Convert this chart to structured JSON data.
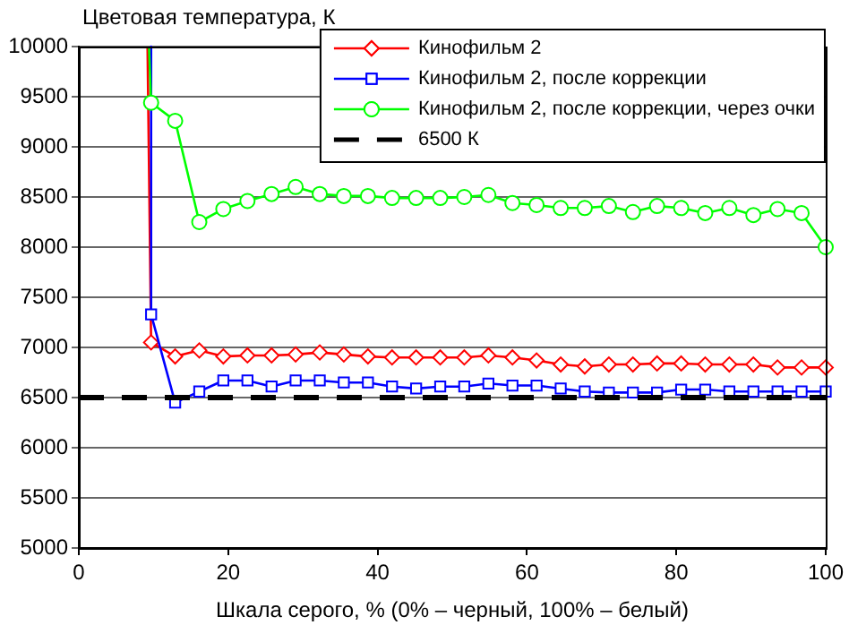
{
  "chart_data": {
    "type": "line",
    "ylabel": "Цветовая температура, К",
    "xlabel": "Шкала серого, % (0% – черный, 100% – белый)",
    "xlim": [
      0,
      100
    ],
    "xticks": [
      0,
      20,
      40,
      60,
      80,
      100
    ],
    "ylim": [
      5000,
      10000
    ],
    "yticks": [
      5000,
      5500,
      6000,
      6500,
      7000,
      7500,
      8000,
      8500,
      9000,
      9500,
      10000
    ],
    "grid": "y",
    "legend": "top right",
    "series": [
      {
        "name": "Кинофильм 2",
        "color": "#ff0000",
        "marker": "diamond",
        "x": [
          9.2,
          9.68,
          12.9,
          16.13,
          19.35,
          22.58,
          25.81,
          29.03,
          32.26,
          35.48,
          38.71,
          41.94,
          45.16,
          48.39,
          51.61,
          54.84,
          58.06,
          61.29,
          64.52,
          67.74,
          70.97,
          74.19,
          77.42,
          80.65,
          83.87,
          87.1,
          90.32,
          93.55,
          96.77,
          100
        ],
        "values": [
          10000,
          7050,
          6910,
          6970,
          6910,
          6920,
          6920,
          6930,
          6950,
          6930,
          6910,
          6900,
          6900,
          6900,
          6900,
          6920,
          6900,
          6870,
          6830,
          6810,
          6830,
          6830,
          6840,
          6840,
          6830,
          6830,
          6830,
          6800,
          6800,
          6800
        ]
      },
      {
        "name": "Кинофильм 2, после коррекции",
        "color": "#0000ff",
        "marker": "square",
        "x": [
          9.68,
          9.68,
          12.9,
          16.13,
          19.35,
          22.58,
          25.81,
          29.03,
          32.26,
          35.48,
          38.71,
          41.94,
          45.16,
          48.39,
          51.61,
          54.84,
          58.06,
          61.29,
          64.52,
          67.74,
          70.97,
          74.19,
          77.42,
          80.65,
          83.87,
          87.1,
          90.32,
          93.55,
          96.77,
          100
        ],
        "values": [
          10000,
          7330,
          6450,
          6560,
          6670,
          6670,
          6610,
          6670,
          6670,
          6650,
          6650,
          6610,
          6590,
          6610,
          6610,
          6640,
          6620,
          6620,
          6590,
          6560,
          6550,
          6550,
          6550,
          6580,
          6580,
          6560,
          6560,
          6560,
          6560,
          6560
        ]
      },
      {
        "name": "Кинофильм 2, после коррекции, через очки",
        "color": "#00ff00",
        "marker": "circle",
        "x": [
          9.4,
          9.68,
          12.9,
          16.13,
          19.35,
          22.58,
          25.81,
          29.03,
          32.26,
          35.48,
          38.71,
          41.94,
          45.16,
          48.39,
          51.61,
          54.84,
          58.06,
          61.29,
          64.52,
          67.74,
          70.97,
          74.19,
          77.42,
          80.65,
          83.87,
          87.1,
          90.32,
          93.55,
          96.77,
          100
        ],
        "values": [
          10000,
          9440,
          9260,
          8250,
          8380,
          8460,
          8530,
          8600,
          8530,
          8510,
          8510,
          8490,
          8490,
          8490,
          8500,
          8520,
          8440,
          8420,
          8390,
          8390,
          8410,
          8350,
          8410,
          8390,
          8340,
          8390,
          8320,
          8380,
          8340,
          8000
        ]
      },
      {
        "name": "6500 К",
        "color": "#000000",
        "marker": "none",
        "line_style": "dashed",
        "x": [
          0,
          100
        ],
        "values": [
          6500,
          6500
        ]
      }
    ]
  }
}
